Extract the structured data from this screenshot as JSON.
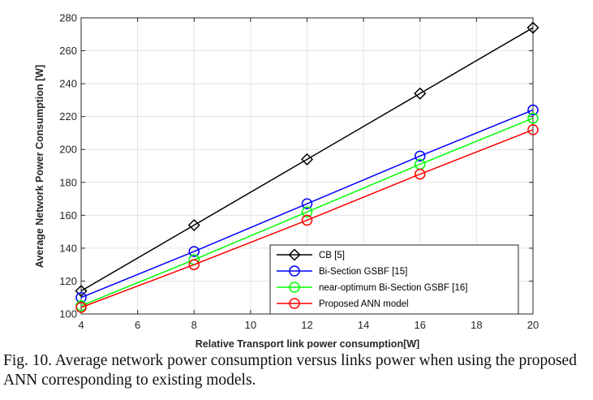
{
  "chart_data": {
    "type": "line",
    "x": [
      4,
      8,
      12,
      16,
      20
    ],
    "series": [
      {
        "name": "CB [5]",
        "values": [
          114,
          154,
          194,
          234,
          274
        ],
        "color": "#000000",
        "marker": "diamond"
      },
      {
        "name": "Bi-Section GSBF [15]",
        "values": [
          110,
          138,
          167,
          196,
          224
        ],
        "color": "#0000ff",
        "marker": "circle"
      },
      {
        "name": "near-optimum Bi-Section GSBF [16]",
        "values": [
          105,
          133,
          162,
          191,
          219
        ],
        "color": "#00ff00",
        "marker": "circle"
      },
      {
        "name": "Proposed ANN model",
        "values": [
          104,
          130,
          157,
          185,
          212
        ],
        "color": "#ff0000",
        "marker": "circle"
      }
    ],
    "xlabel": "Relative Transport link power consumption[W]",
    "ylabel": "Average Network Power Consumption [W]",
    "xlim": [
      4,
      20
    ],
    "ylim": [
      100,
      280
    ],
    "xticks": [
      4,
      6,
      8,
      10,
      12,
      14,
      16,
      18,
      20
    ],
    "yticks": [
      100,
      120,
      140,
      160,
      180,
      200,
      220,
      240,
      260,
      280
    ],
    "grid": true,
    "legend_position": "bottom-right"
  },
  "caption": "Fig. 10.  Average network power consumption versus links power when using the proposed ANN corresponding to existing models."
}
